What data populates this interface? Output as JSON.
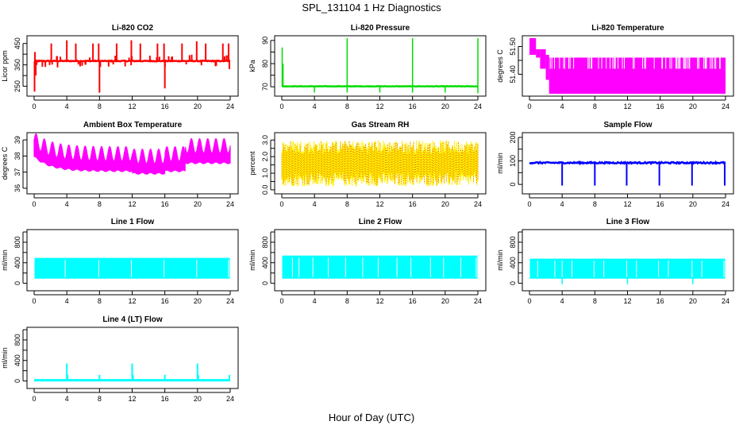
{
  "main_title": "SPL_131104  1 Hz Diagnostics",
  "x_axis_title": "Hour of Day (UTC)",
  "chart_data": [
    {
      "type": "line",
      "title": "Li-820 CO2",
      "ylabel": "Licor ppm",
      "color": "#ff0000",
      "xlim": [
        0,
        24
      ],
      "ylim": [
        215,
        475
      ],
      "yticks": [
        250,
        300,
        350,
        400,
        450
      ],
      "yticklabels": [
        "250",
        "",
        "350",
        "",
        "450"
      ],
      "xticks": [
        0,
        4,
        8,
        12,
        16,
        20,
        24
      ],
      "baseline": 368,
      "noise": 2,
      "pattern": "co2",
      "spikes": [
        [
          0.05,
          225
        ],
        [
          0.1,
          410
        ],
        [
          0.2,
          300
        ],
        [
          2.1,
          450
        ],
        [
          4.0,
          465
        ],
        [
          5.1,
          450
        ],
        [
          7.2,
          450
        ],
        [
          7.9,
          450
        ],
        [
          8.0,
          220
        ],
        [
          8.1,
          340
        ],
        [
          10.1,
          450
        ],
        [
          11.9,
          465
        ],
        [
          13.0,
          450
        ],
        [
          15.1,
          450
        ],
        [
          15.9,
          450
        ],
        [
          16.0,
          240
        ],
        [
          18.1,
          450
        ],
        [
          19.9,
          460
        ],
        [
          21.0,
          450
        ],
        [
          23.1,
          450
        ],
        [
          23.8,
          450
        ],
        [
          23.9,
          330
        ]
      ]
    },
    {
      "type": "line",
      "title": "Li-820 Pressure",
      "ylabel": "kPa",
      "color": "#00dd00",
      "xlim": [
        0,
        24
      ],
      "ylim": [
        67,
        91
      ],
      "yticks": [
        70,
        75,
        80,
        85,
        90
      ],
      "yticklabels": [
        "70",
        "",
        "80",
        "",
        "90"
      ],
      "xticks": [
        0,
        4,
        8,
        12,
        16,
        20,
        24
      ],
      "baseline": 70.2,
      "noise": 0.1,
      "pattern": "pressure",
      "spikes": [
        [
          0.05,
          87
        ],
        [
          0.15,
          80
        ],
        [
          4.0,
          67.5
        ],
        [
          8.0,
          91
        ],
        [
          8.0,
          67.5
        ],
        [
          12.0,
          67.5
        ],
        [
          16.0,
          91
        ],
        [
          16.0,
          67.5
        ],
        [
          20.0,
          67.5
        ],
        [
          24.0,
          91
        ],
        [
          24.0,
          67.2
        ]
      ]
    },
    {
      "type": "line",
      "title": "Li-820 Temperature",
      "ylabel": "degrees C",
      "color": "#ff00ff",
      "xlim": [
        0,
        24
      ],
      "ylim": [
        51.33,
        51.53
      ],
      "yticks": [
        51.4,
        51.45,
        51.5
      ],
      "yticklabels": [
        "51.40",
        "",
        "51.50"
      ],
      "xticks": [
        0,
        4,
        8,
        12,
        16,
        20,
        24
      ],
      "bands": [
        [
          0,
          0.8,
          51.47,
          51.53
        ],
        [
          0.8,
          1.3,
          51.46,
          51.49
        ],
        [
          1.3,
          2.0,
          51.42,
          51.49
        ],
        [
          2.0,
          2.4,
          51.38,
          51.47
        ],
        [
          2.4,
          24,
          51.33,
          51.46
        ]
      ],
      "pattern": "band"
    },
    {
      "type": "line",
      "title": "Ambient Box Temperature",
      "ylabel": "degrees C",
      "color": "#ff00ff",
      "xlim": [
        0,
        24
      ],
      "ylim": [
        35.8,
        39.3
      ],
      "yticks": [
        36,
        37,
        38,
        39
      ],
      "yticklabels": [
        "36",
        "37",
        "38",
        "39"
      ],
      "xticks": [
        0,
        4,
        8,
        12,
        16,
        20,
        24
      ],
      "pattern": "ambient",
      "period_hours": 1.0
    },
    {
      "type": "line",
      "title": "Gas Stream RH",
      "ylabel": "percent",
      "color": "#ffee00",
      "color2": "#dd3300",
      "xlim": [
        0,
        24
      ],
      "ylim": [
        -0.1,
        3.3
      ],
      "yticks": [
        0,
        0.5,
        1,
        1.5,
        2,
        2.5,
        3
      ],
      "yticklabels": [
        "0.0",
        "",
        "1.0",
        "",
        "2.0",
        "",
        "3.0"
      ],
      "xticks": [
        0,
        4,
        8,
        12,
        16,
        20,
        24
      ],
      "pattern": "rh"
    },
    {
      "type": "line",
      "title": "Sample Flow",
      "ylabel": "ml/min",
      "color": "#0000ff",
      "xlim": [
        0,
        24
      ],
      "ylim": [
        -30,
        210
      ],
      "yticks": [
        0,
        50,
        100,
        150,
        200
      ],
      "yticklabels": [
        "0",
        "",
        "100",
        "",
        "200"
      ],
      "xticks": [
        0,
        4,
        8,
        12,
        16,
        20,
        24
      ],
      "baseline": 92,
      "noise": 3,
      "pattern": "flow",
      "spikes": [
        [
          4.0,
          -5
        ],
        [
          8.0,
          -5
        ],
        [
          11.9,
          -5
        ],
        [
          15.9,
          -5
        ],
        [
          19.9,
          -5
        ],
        [
          23.9,
          -5
        ]
      ]
    },
    {
      "type": "line",
      "title": "Line 1 Flow",
      "ylabel": "ml/min",
      "color": "#00ffff",
      "xlim": [
        0,
        24
      ],
      "ylim": [
        -100,
        1000
      ],
      "yticks": [
        0,
        200,
        400,
        600,
        800,
        1000
      ],
      "yticklabels": [
        "0",
        "",
        "400",
        "",
        "800",
        ""
      ],
      "xticks": [
        0,
        4,
        8,
        12,
        16,
        20,
        24
      ],
      "low": 90,
      "high": 495,
      "pattern": "square",
      "gaps": [
        3.8,
        7.9,
        11.9,
        15.9,
        19.9,
        23.8
      ]
    },
    {
      "type": "line",
      "title": "Line 2 Flow",
      "ylabel": "ml/min",
      "color": "#00ffff",
      "xlim": [
        0,
        24
      ],
      "ylim": [
        -100,
        1000
      ],
      "yticks": [
        0,
        200,
        400,
        600,
        800,
        1000
      ],
      "yticklabels": [
        "0",
        "",
        "400",
        "",
        "800",
        ""
      ],
      "xticks": [
        0,
        4,
        8,
        12,
        16,
        20,
        24
      ],
      "low": 90,
      "high": 540,
      "pattern": "square",
      "gaps": [
        1.3,
        2.1,
        3.8,
        5.7,
        7.8,
        9.9,
        11.8,
        14.1,
        15.8,
        18.2,
        19.8,
        21.9,
        23.8
      ]
    },
    {
      "type": "line",
      "title": "Line 3 Flow",
      "ylabel": "ml/min",
      "color": "#00ffff",
      "xlim": [
        0,
        24
      ],
      "ylim": [
        -100,
        1000
      ],
      "yticks": [
        0,
        200,
        400,
        600,
        800,
        1000
      ],
      "yticklabels": [
        "0",
        "",
        "400",
        "",
        "800",
        ""
      ],
      "xticks": [
        0,
        4,
        8,
        12,
        16,
        20,
        24
      ],
      "low": 90,
      "high": 480,
      "pattern": "square",
      "gaps": [
        1.0,
        3.1,
        4.0,
        5.2,
        7.9,
        9.1,
        11.9,
        13.1,
        15.8,
        17.0,
        19.9,
        21.1,
        23.8
      ],
      "spikes": [
        [
          4.0,
          -20
        ],
        [
          12.0,
          -20
        ],
        [
          20.0,
          -20
        ]
      ]
    },
    {
      "type": "line",
      "title": "Line 4 (LT) Flow",
      "ylabel": "ml/min",
      "color": "#00ffff",
      "xlim": [
        0,
        24
      ],
      "ylim": [
        -100,
        1000
      ],
      "yticks": [
        0,
        200,
        400,
        600,
        800,
        1000
      ],
      "yticklabels": [
        "0",
        "",
        "400",
        "",
        "800",
        ""
      ],
      "xticks": [
        0,
        4,
        8,
        12,
        16,
        20,
        24
      ],
      "baseline": 15,
      "noise": 0,
      "pattern": "flat",
      "spikes": [
        [
          4.0,
          340
        ],
        [
          4.1,
          120
        ],
        [
          8.0,
          120
        ],
        [
          12.0,
          340
        ],
        [
          12.1,
          120
        ],
        [
          16.0,
          120
        ],
        [
          20.0,
          340
        ],
        [
          20.1,
          120
        ],
        [
          23.9,
          120
        ]
      ]
    }
  ]
}
